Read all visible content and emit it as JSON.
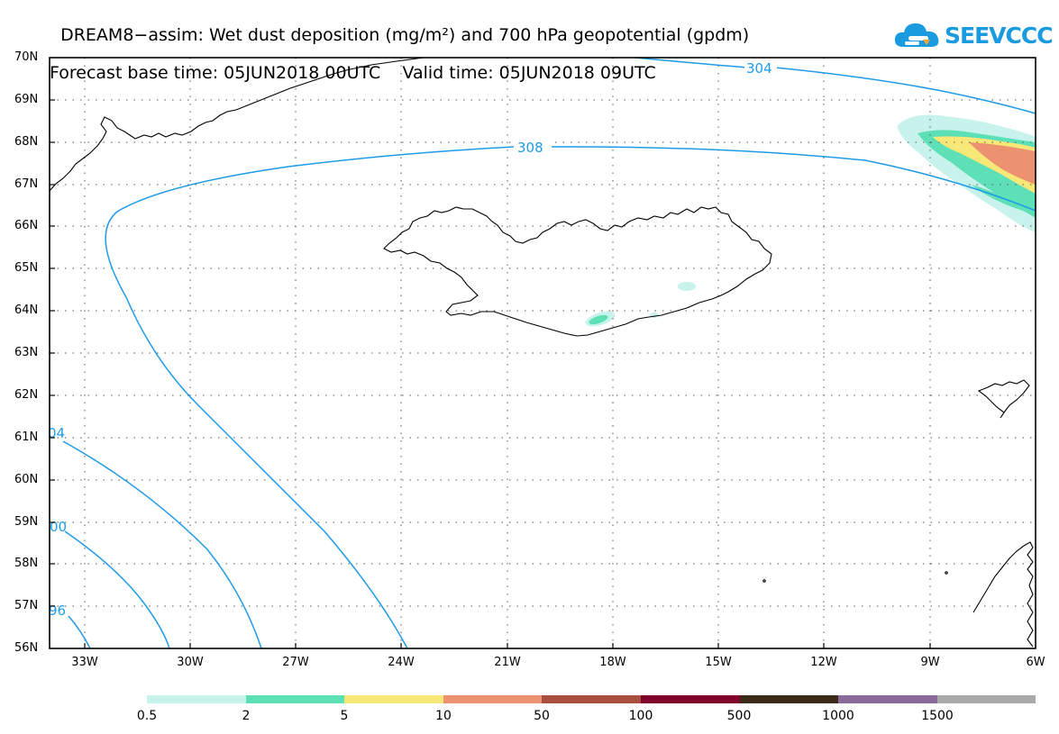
{
  "title": {
    "line1": "DREAM8−assim: Wet dust deposition (mg/m²) and 700 hPa geopotential (gpdm)",
    "line2_left": "Forecast base time: 05JUN2018 00UTC",
    "line2_right": "Valid time: 05JUN2018 09UTC"
  },
  "logo": {
    "text": "SEEVCCC",
    "icon": "cloud-icon",
    "color": "#1a9be0"
  },
  "map": {
    "lat_labels": [
      "70N",
      "69N",
      "68N",
      "67N",
      "66N",
      "65N",
      "64N",
      "63N",
      "62N",
      "61N",
      "60N",
      "59N",
      "58N",
      "57N",
      "56N"
    ],
    "lon_labels": [
      "33W",
      "30W",
      "27W",
      "24W",
      "21W",
      "18W",
      "15W",
      "12W",
      "9W",
      "6W"
    ],
    "contour_labels": [
      "304",
      "308",
      "04",
      "00",
      "96"
    ],
    "contour_color": "#1e9be8"
  },
  "legend": {
    "colors": [
      "#c8f2ec",
      "#5ee0b6",
      "#f8e877",
      "#ec9270",
      "#a85040",
      "#82002c",
      "#3a2a18",
      "#8a6a9a",
      "#aaaaaa"
    ],
    "labels": [
      "0.5",
      "2",
      "5",
      "10",
      "50",
      "100",
      "500",
      "1000",
      "1500"
    ]
  }
}
